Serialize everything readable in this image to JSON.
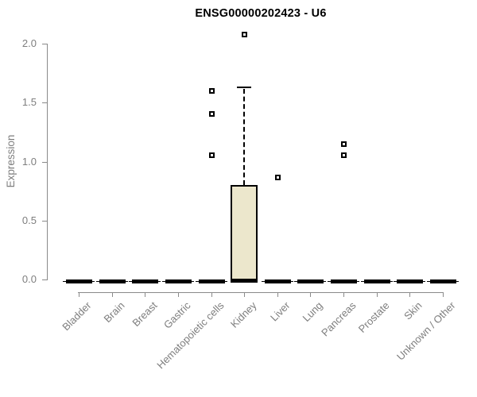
{
  "chart_data": {
    "type": "box",
    "title": "ENSG00000202423 - U6",
    "ylabel": "Expression",
    "xlabel": "",
    "ylim": [
      0,
      2.0
    ],
    "yticks": [
      "0.0",
      "0.5",
      "1.0",
      "1.5",
      "2.0"
    ],
    "grid": false,
    "legend": false,
    "categories": [
      "Bladder",
      "Brain",
      "Breast",
      "Gastric",
      "Hematopoietic cells",
      "Kidney",
      "Liver",
      "Lung",
      "Pancreas",
      "Prostate",
      "Skin",
      "Unknown / Other"
    ],
    "series": [
      {
        "name": "Bladder",
        "q1": 0,
        "median": 0,
        "q3": 0,
        "whisker_low": 0,
        "whisker_high": 0,
        "outliers": []
      },
      {
        "name": "Brain",
        "q1": 0,
        "median": 0,
        "q3": 0,
        "whisker_low": 0,
        "whisker_high": 0,
        "outliers": []
      },
      {
        "name": "Breast",
        "q1": 0,
        "median": 0,
        "q3": 0,
        "whisker_low": 0,
        "whisker_high": 0,
        "outliers": []
      },
      {
        "name": "Gastric",
        "q1": 0,
        "median": 0,
        "q3": 0,
        "whisker_low": 0,
        "whisker_high": 0,
        "outliers": []
      },
      {
        "name": "Hematopoietic cells",
        "q1": 0,
        "median": 0,
        "q3": 0,
        "whisker_low": 0,
        "whisker_high": 0,
        "outliers": [
          1.6,
          1.41,
          1.06
        ]
      },
      {
        "name": "Kidney",
        "q1": 0,
        "median": 0.01,
        "q3": 0.8,
        "whisker_low": 0,
        "whisker_high": 1.63,
        "outliers": [
          2.08
        ]
      },
      {
        "name": "Liver",
        "q1": 0,
        "median": 0,
        "q3": 0,
        "whisker_low": 0,
        "whisker_high": 0,
        "outliers": [
          0.87
        ]
      },
      {
        "name": "Lung",
        "q1": 0,
        "median": 0,
        "q3": 0,
        "whisker_low": 0,
        "whisker_high": 0,
        "outliers": []
      },
      {
        "name": "Pancreas",
        "q1": 0,
        "median": 0,
        "q3": 0,
        "whisker_low": 0,
        "whisker_high": 0,
        "outliers": [
          1.15,
          1.06
        ]
      },
      {
        "name": "Prostate",
        "q1": 0,
        "median": 0,
        "q3": 0,
        "whisker_low": 0,
        "whisker_high": 0,
        "outliers": []
      },
      {
        "name": "Skin",
        "q1": 0,
        "median": 0,
        "q3": 0,
        "whisker_low": 0,
        "whisker_high": 0,
        "outliers": []
      },
      {
        "name": "Unknown / Other",
        "q1": 0,
        "median": 0,
        "q3": 0,
        "whisker_low": 0,
        "whisker_high": 0,
        "outliers": []
      }
    ],
    "colors": {
      "box_fill": "#ECE7CC",
      "box_border": "#000000",
      "median": "#000000",
      "whisker": "#000000",
      "outlier_border": "#000000",
      "outlier_fill": "#ffffff",
      "axis": "#8A8A8A",
      "tick_label": "#7E7E7E",
      "title": "#000000",
      "background": "#ffffff"
    }
  }
}
